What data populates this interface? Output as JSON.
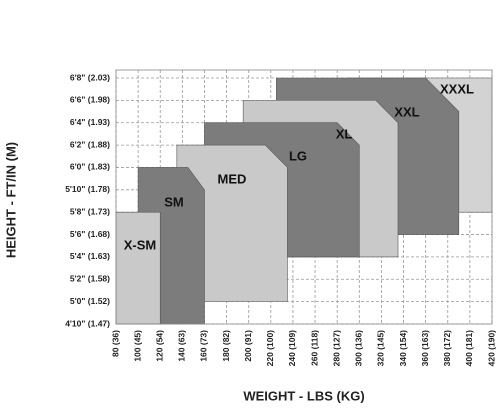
{
  "chart_data": {
    "type": "region",
    "x_label": "WEIGHT - LBS (KG)",
    "y_label": "HEIGHT - FT/IN (M)",
    "xlim": [
      80,
      420
    ],
    "ylim": [
      58,
      80
    ],
    "grid": true,
    "xticks": [
      {
        "value": 80,
        "label": "80 (36)"
      },
      {
        "value": 100,
        "label": "100 (45)"
      },
      {
        "value": 120,
        "label": "120 (54)"
      },
      {
        "value": 140,
        "label": "140 (63)"
      },
      {
        "value": 160,
        "label": "160 (73)"
      },
      {
        "value": 180,
        "label": "180 (82)"
      },
      {
        "value": 200,
        "label": "200 (91)"
      },
      {
        "value": 220,
        "label": "220 (100)"
      },
      {
        "value": 240,
        "label": "240 (109)"
      },
      {
        "value": 260,
        "label": "260 (118)"
      },
      {
        "value": 280,
        "label": "280 (127)"
      },
      {
        "value": 300,
        "label": "300 (136)"
      },
      {
        "value": 320,
        "label": "320 (145)"
      },
      {
        "value": 340,
        "label": "340 (154)"
      },
      {
        "value": 360,
        "label": "360 (163)"
      },
      {
        "value": 380,
        "label": "380 (172)"
      },
      {
        "value": 400,
        "label": "400 (181)"
      },
      {
        "value": 420,
        "label": "420 (190)"
      }
    ],
    "yticks": [
      {
        "value": 58,
        "label": "4'10\" (1.47)"
      },
      {
        "value": 60,
        "label": "5'0\" (1.52)"
      },
      {
        "value": 62,
        "label": "5'2\" (1.58)"
      },
      {
        "value": 64,
        "label": "5'4\" (1.63)"
      },
      {
        "value": 66,
        "label": "5'6\" (1.68)"
      },
      {
        "value": 68,
        "label": "5'8\" (1.73)"
      },
      {
        "value": 70,
        "label": "5'10\" (1.78)"
      },
      {
        "value": 72,
        "label": "6'0\" (1.83)"
      },
      {
        "value": 74,
        "label": "6'2\" (1.88)"
      },
      {
        "value": 76,
        "label": "6'4\" (1.93)"
      },
      {
        "value": 78,
        "label": "6'6\" (1.98)"
      },
      {
        "value": 80,
        "label": "6'8\" (2.03)"
      }
    ],
    "series": [
      {
        "name": "XXXL",
        "color": "#d3d3d3",
        "x": [
          290,
          290,
          420,
          420
        ],
        "values": [
          68,
          80,
          80,
          68
        ]
      },
      {
        "name": "XXL",
        "color": "#7c7c7c",
        "x": [
          225,
          225,
          360,
          390,
          390
        ],
        "values": [
          66,
          80,
          80,
          77,
          66
        ]
      },
      {
        "name": "XL",
        "color": "#c9c9c9",
        "x": [
          195,
          195,
          315,
          335,
          335
        ],
        "values": [
          64,
          78,
          78,
          76,
          64
        ]
      },
      {
        "name": "LG",
        "color": "#7c7c7c",
        "x": [
          160,
          160,
          280,
          300,
          300
        ],
        "values": [
          64,
          76,
          76,
          74,
          64
        ]
      },
      {
        "name": "MED",
        "color": "#c9c9c9",
        "x": [
          135,
          135,
          215,
          235,
          235
        ],
        "values": [
          60,
          74,
          74,
          72,
          60
        ]
      },
      {
        "name": "SM",
        "color": "#7c7c7c",
        "x": [
          100,
          100,
          145,
          160,
          160
        ],
        "values": [
          58,
          72,
          72,
          70,
          58
        ]
      },
      {
        "name": "X-SM",
        "color": "#c9c9c9",
        "x": [
          80,
          80,
          120,
          120
        ],
        "values": [
          58,
          68,
          68,
          58
        ]
      }
    ]
  }
}
